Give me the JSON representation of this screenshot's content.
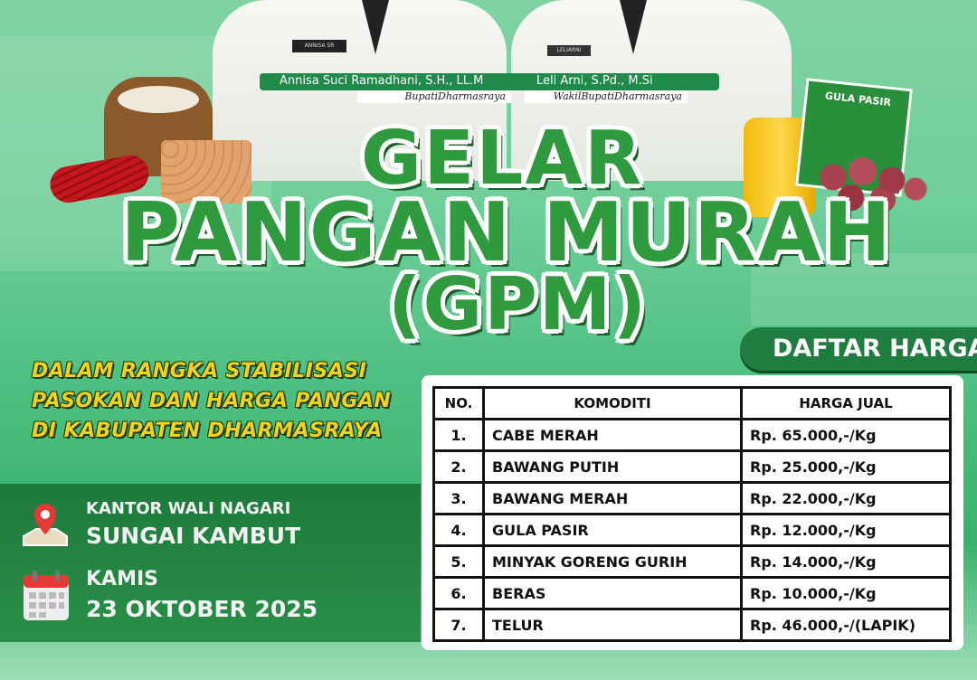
{
  "officials": [
    {
      "name": "Annisa Suci Ramadhani, S.H., LL.M",
      "title": "BupatiDharmasraya",
      "badge": "ANNISA SR"
    },
    {
      "name": "Leli Arni, S.Pd., M.Si",
      "title": "WakilBupatiDharmasraya",
      "badge": "LELIARNI"
    }
  ],
  "title": {
    "line1": "GELAR",
    "line2": "PANGAN MURAH",
    "line3": "(GPM)"
  },
  "tagline": [
    "DALAM RANGKA STABILISASI",
    "PASOKAN DAN HARGA PANGAN",
    "DI KABUPATEN DHARMASRAYA"
  ],
  "location": {
    "label": "KANTOR WALI NAGARI",
    "place": "SUNGAI KAMBUT",
    "icon": "map-pin-icon"
  },
  "date": {
    "day": "KAMIS",
    "date": "23 OKTOBER 2025",
    "icon": "calendar-icon"
  },
  "products": {
    "sugar_label": "GULA PASIR"
  },
  "price_list": {
    "heading": "DAFTAR HARGA",
    "columns": [
      "NO.",
      "KOMODITI",
      "HARGA JUAL"
    ],
    "rows": [
      [
        "1.",
        "CABE MERAH",
        "Rp. 65.000,-/Kg"
      ],
      [
        "2.",
        "BAWANG PUTIH",
        "Rp. 25.000,-/Kg"
      ],
      [
        "3.",
        "BAWANG MERAH",
        "Rp. 22.000,-/Kg"
      ],
      [
        "4.",
        "GULA PASIR",
        "Rp. 12.000,-/Kg"
      ],
      [
        "5.",
        "MINYAK GORENG GURIH",
        "Rp. 14.000,-/Kg"
      ],
      [
        "6.",
        "BERAS",
        "Rp. 10.000,-/Kg"
      ],
      [
        "7.",
        "TELUR",
        "Rp. 46.000,-/(LAPIK)"
      ]
    ]
  },
  "colors": {
    "primary_green": "#2f9a3e",
    "dark_green": "#1f7d3f",
    "tagline_yellow": "#f5d21a"
  }
}
